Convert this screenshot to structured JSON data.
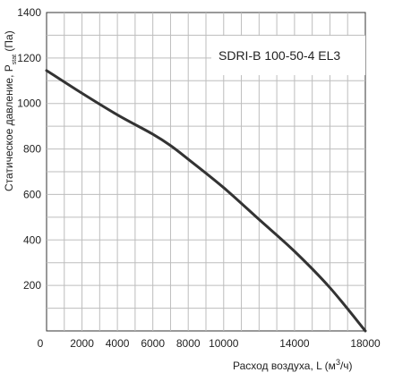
{
  "chart_data": {
    "type": "line",
    "title": "",
    "annotation": "SDRI-B 100-50-4 EL3",
    "xlabel_prefix": "Расход воздуха, L (м",
    "xlabel_sup": "3",
    "xlabel_suffix": "/ч)",
    "ylabel_prefix": "Статическое давление, P",
    "ylabel_sub": "stat",
    "ylabel_suffix": " (Па)",
    "xlim": [
      0,
      18000
    ],
    "ylim": [
      0,
      1400
    ],
    "x_ticks": [
      0,
      2000,
      4000,
      6000,
      8000,
      10000,
      14000,
      18000
    ],
    "x_tick_labels": [
      "0",
      "2000",
      "4000",
      "6000",
      "8000",
      "10000",
      "14000",
      "18000"
    ],
    "y_ticks": [
      200,
      400,
      600,
      800,
      1000,
      1200,
      1400
    ],
    "y_tick_labels": [
      "200",
      "400",
      "600",
      "800",
      "1000",
      "1200",
      "1400"
    ],
    "grid": true,
    "series": [
      {
        "color": "#333333",
        "x": [
          0,
          2000,
          4000,
          6000,
          7000,
          8000,
          10000,
          12000,
          14000,
          16000,
          18000
        ],
        "y": [
          1145,
          1045,
          950,
          865,
          815,
          755,
          630,
          490,
          350,
          190,
          0
        ]
      }
    ]
  }
}
